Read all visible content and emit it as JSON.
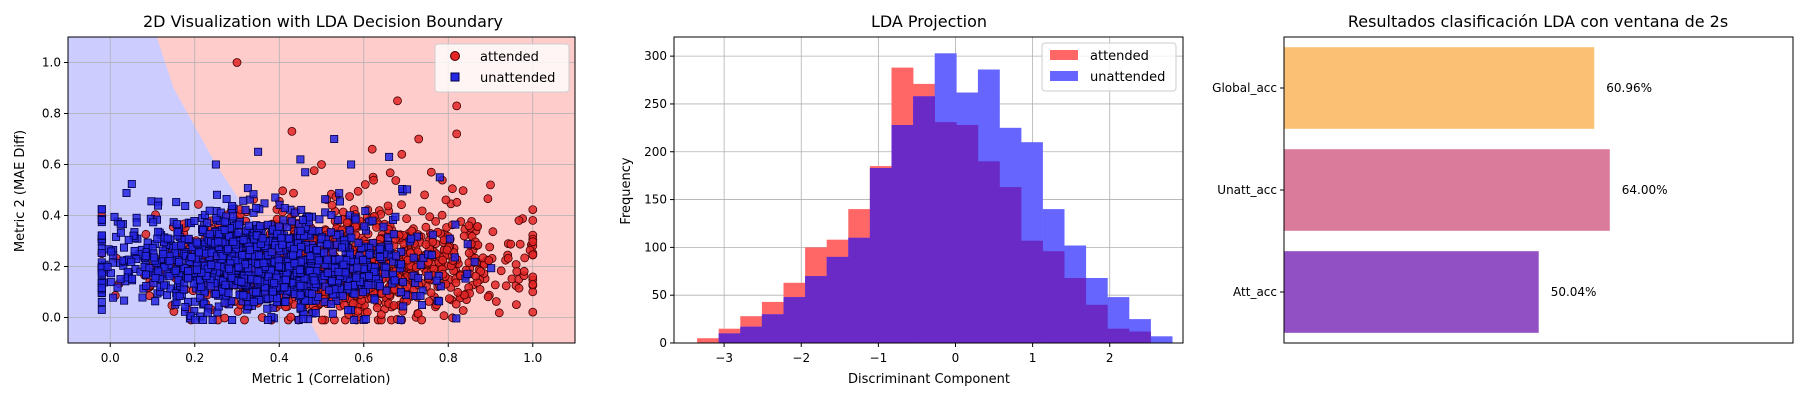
{
  "chart_data": [
    {
      "type": "scatter",
      "title": "2D Visualization with LDA Decision Boundary",
      "xlabel": "Metric 1 (Correlation)",
      "ylabel": "Metric 2 (MAE Diff)",
      "xlim": [
        -0.1,
        1.1
      ],
      "ylim": [
        -0.1,
        1.1
      ],
      "xticks": [
        0.0,
        0.2,
        0.4,
        0.6,
        0.8,
        1.0
      ],
      "yticks": [
        0.0,
        0.2,
        0.4,
        0.6,
        0.8,
        1.0
      ],
      "xtick_labels": [
        "0.0",
        "0.2",
        "0.4",
        "0.6",
        "0.8",
        "1.0"
      ],
      "ytick_labels": [
        "0.0",
        "0.2",
        "0.4",
        "0.6",
        "0.8",
        "1.0"
      ],
      "grid": true,
      "legend_position": "top-right",
      "decision_boundary": [
        [
          0.11,
          1.1
        ],
        [
          0.15,
          0.9
        ],
        [
          0.25,
          0.6
        ],
        [
          0.37,
          0.3
        ],
        [
          0.5,
          -0.1
        ]
      ],
      "region_colors": {
        "unattended": "#ccccff",
        "attended": "#ffcccc"
      },
      "series": [
        {
          "name": "attended",
          "marker": "circle",
          "color": "#e32626",
          "edge_color": "#440000",
          "cloud": {
            "x_center": 0.55,
            "x_spread": 0.2,
            "y_center": 0.2,
            "y_spread": 0.12,
            "count": 1200
          },
          "outliers": [
            [
              0.3,
              1.0
            ],
            [
              0.68,
              0.85
            ],
            [
              0.82,
              0.83
            ],
            [
              0.82,
              0.72
            ],
            [
              0.73,
              0.7
            ],
            [
              0.43,
              0.73
            ],
            [
              0.62,
              0.66
            ],
            [
              0.69,
              0.64
            ],
            [
              0.76,
              0.57
            ],
            [
              0.5,
              0.6
            ],
            [
              0.9,
              0.52
            ]
          ]
        },
        {
          "name": "unattended",
          "marker": "square",
          "color": "#2626e3",
          "edge_color": "#000044",
          "cloud": {
            "x_center": 0.35,
            "x_spread": 0.18,
            "y_center": 0.2,
            "y_spread": 0.11,
            "count": 1200
          },
          "outliers": [
            [
              0.53,
              0.7
            ],
            [
              0.35,
              0.65
            ],
            [
              0.66,
              0.63
            ],
            [
              0.25,
              0.6
            ],
            [
              0.45,
              0.62
            ],
            [
              0.57,
              0.6
            ],
            [
              0.78,
              0.55
            ]
          ]
        }
      ]
    },
    {
      "type": "histogram",
      "title": "LDA Projection",
      "xlabel": "Discriminant Component",
      "ylabel": "Frequency",
      "xlim": [
        -3.65,
        2.95
      ],
      "ylim": [
        0,
        320
      ],
      "xticks": [
        -3,
        -2,
        -1,
        0,
        1,
        2
      ],
      "yticks": [
        0,
        50,
        100,
        150,
        200,
        250,
        300
      ],
      "xtick_labels": [
        "−3",
        "−2",
        "−1",
        "0",
        "1",
        "2"
      ],
      "ytick_labels": [
        "0",
        "50",
        "100",
        "150",
        "200",
        "250",
        "300"
      ],
      "grid": true,
      "legend_position": "top-right",
      "series": [
        {
          "name": "attended",
          "color": "#ff6666",
          "bins": [
            [
              -3.35,
              -3.07,
              5
            ],
            [
              -3.07,
              -2.79,
              15
            ],
            [
              -2.79,
              -2.51,
              28
            ],
            [
              -2.51,
              -2.23,
              43
            ],
            [
              -2.23,
              -1.95,
              63
            ],
            [
              -1.95,
              -1.67,
              100
            ],
            [
              -1.67,
              -1.39,
              108
            ],
            [
              -1.39,
              -1.11,
              140
            ],
            [
              -1.11,
              -0.83,
              185
            ],
            [
              -0.83,
              -0.55,
              288
            ],
            [
              -0.55,
              -0.27,
              271
            ],
            [
              -0.27,
              0.01,
              231
            ],
            [
              0.01,
              0.29,
              228
            ],
            [
              0.29,
              0.57,
              190
            ],
            [
              0.57,
              0.85,
              163
            ],
            [
              0.85,
              1.13,
              107
            ],
            [
              1.13,
              1.41,
              96
            ],
            [
              1.41,
              1.69,
              68
            ],
            [
              1.69,
              1.97,
              40
            ],
            [
              1.97,
              2.25,
              15
            ],
            [
              2.25,
              2.53,
              12
            ]
          ]
        },
        {
          "name": "unattended",
          "color": "#6666ff",
          "bins": [
            [
              -3.07,
              -2.79,
              10
            ],
            [
              -2.79,
              -2.51,
              17
            ],
            [
              -2.51,
              -2.23,
              30
            ],
            [
              -2.23,
              -1.95,
              48
            ],
            [
              -1.95,
              -1.67,
              70
            ],
            [
              -1.67,
              -1.39,
              90
            ],
            [
              -1.39,
              -1.11,
              110
            ],
            [
              -1.11,
              -0.83,
              183
            ],
            [
              -0.83,
              -0.55,
              228
            ],
            [
              -0.55,
              -0.27,
              258
            ],
            [
              -0.27,
              0.01,
              303
            ],
            [
              0.01,
              0.29,
              262
            ],
            [
              0.29,
              0.57,
              286
            ],
            [
              0.57,
              0.85,
              225
            ],
            [
              0.85,
              1.13,
              210
            ],
            [
              1.13,
              1.41,
              140
            ],
            [
              1.41,
              1.69,
              102
            ],
            [
              1.69,
              1.97,
              68
            ],
            [
              1.97,
              2.25,
              48
            ],
            [
              2.25,
              2.53,
              25
            ],
            [
              2.53,
              2.81,
              7
            ]
          ]
        }
      ],
      "overlap_color": "#6a2ac6"
    },
    {
      "type": "bar",
      "orientation": "horizontal",
      "title": "Resultados clasificación LDA con ventana de 2s",
      "categories": [
        "Global_acc",
        "Unatt_acc",
        "Att_acc"
      ],
      "values": [
        60.96,
        64.0,
        50.04
      ],
      "value_labels": [
        "60.96%",
        "64.00%",
        "50.04%"
      ],
      "colors": [
        "#fbc073",
        "#db7b9c",
        "#9150c4"
      ],
      "xlim": [
        0,
        100
      ],
      "xticks_shown": false
    }
  ]
}
